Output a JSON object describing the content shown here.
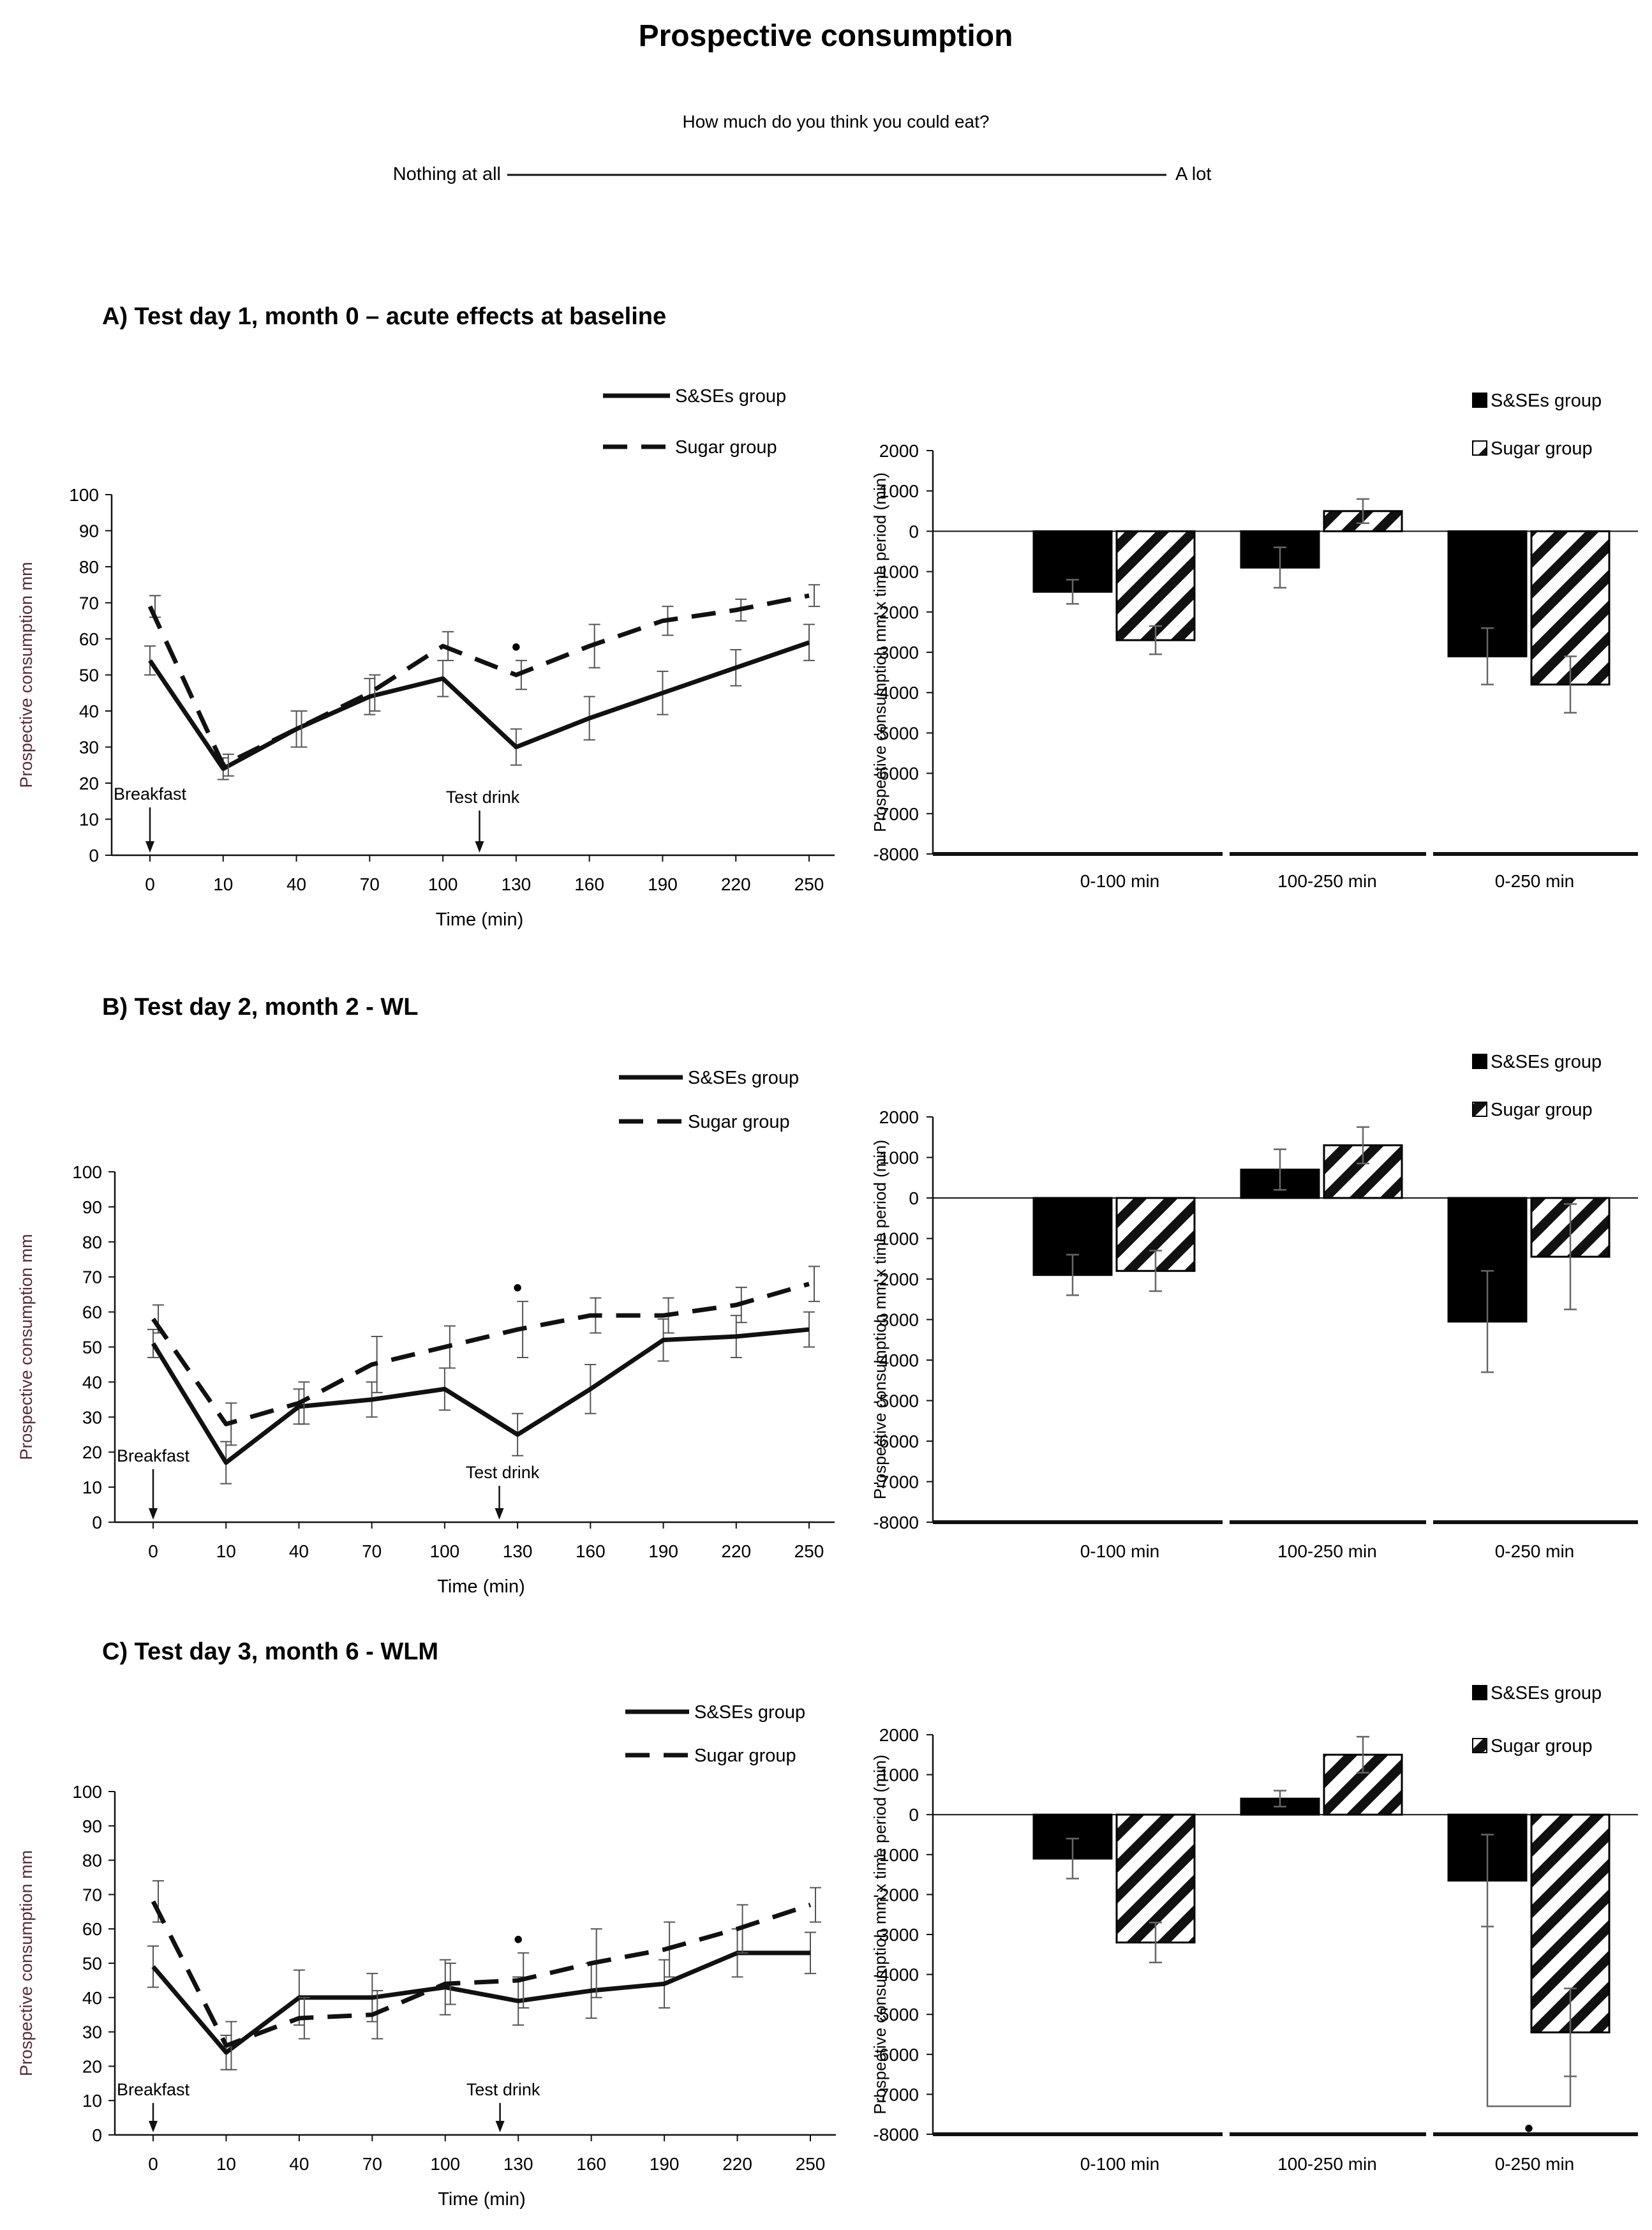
{
  "header": {
    "title": "Prospective consumption",
    "question": "How much do you think you could eat?",
    "scale_left": "Nothing at all",
    "scale_right": "A lot"
  },
  "chart_data": [
    {
      "type": "line",
      "panel": "A",
      "section_title": "A) Test day 1, month 0 – acute effects at baseline",
      "title": "",
      "xlabel": "Time (min)",
      "ylabel": "Prospective consumption mm",
      "x": [
        0,
        10,
        40,
        70,
        100,
        130,
        160,
        190,
        220,
        250
      ],
      "ylim": [
        0,
        100
      ],
      "yticks": [
        0,
        10,
        20,
        30,
        40,
        50,
        60,
        70,
        80,
        90,
        100
      ],
      "series": [
        {
          "name": "S&SEs group",
          "style": "solid",
          "values": [
            54,
            24,
            35,
            44,
            49,
            30,
            38,
            45,
            52,
            59
          ],
          "err": [
            4,
            3,
            5,
            5,
            5,
            5,
            6,
            6,
            5,
            5
          ]
        },
        {
          "name": "Sugar group",
          "style": "dashed",
          "values": [
            69,
            25,
            35,
            45,
            58,
            50,
            58,
            65,
            68,
            72
          ],
          "err": [
            3,
            3,
            5,
            5,
            4,
            4,
            6,
            4,
            3,
            3
          ]
        }
      ],
      "annotations": [
        {
          "text": "Breakfast",
          "x_index": 0
        },
        {
          "text": "Test drink",
          "x_index": 4.5
        }
      ],
      "significance": [
        {
          "text": "•",
          "x_index": 5
        }
      ]
    },
    {
      "type": "bar",
      "panel": "A",
      "title": "",
      "xlabel": "",
      "ylabel": "Prospective consumption mm x time period (min)",
      "categories": [
        "0-100 min",
        "100-250 min",
        "0-250 min"
      ],
      "ylim": [
        -8000,
        2000
      ],
      "yticks": [
        2000,
        1000,
        0,
        -1000,
        -2000,
        -3000,
        -4000,
        -5000,
        -6000,
        -7000,
        -8000
      ],
      "series": [
        {
          "name": "S&SEs group",
          "fill": "solid",
          "values": [
            -1500,
            -900,
            -3100
          ],
          "err": [
            300,
            500,
            700
          ]
        },
        {
          "name": "Sugar group",
          "fill": "hatched",
          "values": [
            -2700,
            500,
            -3800
          ],
          "err": [
            350,
            300,
            700
          ]
        }
      ]
    },
    {
      "type": "line",
      "panel": "B",
      "section_title": "B) Test day 2, month 2 - WL",
      "title": "",
      "xlabel": "Time (min)",
      "ylabel": "Prospective consumption mm",
      "x": [
        0,
        10,
        40,
        70,
        100,
        130,
        160,
        190,
        220,
        250
      ],
      "ylim": [
        0,
        100
      ],
      "yticks": [
        0,
        10,
        20,
        30,
        40,
        50,
        60,
        70,
        80,
        90,
        100
      ],
      "series": [
        {
          "name": "S&SEs group",
          "style": "solid",
          "values": [
            51,
            17,
            33,
            35,
            38,
            25,
            38,
            52,
            53,
            55
          ],
          "err": [
            4,
            6,
            5,
            5,
            6,
            6,
            7,
            6,
            6,
            5
          ]
        },
        {
          "name": "Sugar group",
          "style": "dashed",
          "values": [
            58,
            28,
            34,
            45,
            50,
            55,
            59,
            59,
            62,
            68
          ],
          "err": [
            4,
            6,
            6,
            8,
            6,
            8,
            5,
            5,
            5,
            5
          ]
        }
      ],
      "annotations": [
        {
          "text": "Breakfast",
          "x_index": 0
        },
        {
          "text": "Test drink",
          "x_index": 4.75
        }
      ],
      "significance": [
        {
          "text": "•",
          "x_index": 5
        }
      ]
    },
    {
      "type": "bar",
      "panel": "B",
      "title": "",
      "xlabel": "",
      "ylabel": "Prospective consumption mm x time period (min)",
      "categories": [
        "0-100 min",
        "100-250 min",
        "0-250 min"
      ],
      "ylim": [
        -8000,
        2000
      ],
      "yticks": [
        2000,
        1000,
        0,
        -1000,
        -2000,
        -3000,
        -4000,
        -5000,
        -6000,
        -7000,
        -8000
      ],
      "series": [
        {
          "name": "S&SEs group",
          "fill": "solid",
          "values": [
            -1900,
            700,
            -3050
          ],
          "err": [
            500,
            500,
            1250
          ]
        },
        {
          "name": "Sugar group",
          "fill": "hatched",
          "values": [
            -1800,
            1300,
            -1450
          ],
          "err": [
            500,
            450,
            1300
          ]
        }
      ]
    },
    {
      "type": "line",
      "panel": "C",
      "section_title": "C) Test day 3, month 6 - WLM",
      "title": "",
      "xlabel": "Time (min)",
      "ylabel": "Prospective consumption mm",
      "x": [
        0,
        10,
        40,
        70,
        100,
        130,
        160,
        190,
        220,
        250
      ],
      "ylim": [
        0,
        100
      ],
      "yticks": [
        0,
        10,
        20,
        30,
        40,
        50,
        60,
        70,
        80,
        90,
        100
      ],
      "series": [
        {
          "name": "S&SEs group",
          "style": "solid",
          "values": [
            49,
            24,
            40,
            40,
            43,
            39,
            42,
            44,
            53,
            53
          ],
          "err": [
            6,
            5,
            8,
            7,
            8,
            7,
            8,
            7,
            7,
            6
          ]
        },
        {
          "name": "Sugar group",
          "style": "dashed",
          "values": [
            68,
            26,
            34,
            35,
            44,
            45,
            50,
            54,
            60,
            67
          ],
          "err": [
            6,
            7,
            6,
            7,
            6,
            8,
            10,
            8,
            7,
            5
          ]
        }
      ],
      "annotations": [
        {
          "text": "Breakfast",
          "x_index": 0
        },
        {
          "text": "Test drink",
          "x_index": 4.75
        }
      ],
      "significance": [
        {
          "text": "•",
          "x_index": 5
        }
      ]
    },
    {
      "type": "bar",
      "panel": "C",
      "title": "",
      "xlabel": "",
      "ylabel": "Prospective consumption mm x time period (min)",
      "categories": [
        "0-100 min",
        "100-250 min",
        "0-250 min"
      ],
      "ylim": [
        -8000,
        2000
      ],
      "yticks": [
        2000,
        1000,
        0,
        -1000,
        -2000,
        -3000,
        -4000,
        -5000,
        -6000,
        -7000,
        -8000
      ],
      "series": [
        {
          "name": "S&SEs group",
          "fill": "solid",
          "values": [
            -1100,
            400,
            -1650
          ],
          "err": [
            500,
            200,
            1150
          ]
        },
        {
          "name": "Sugar group",
          "fill": "hatched",
          "values": [
            -3200,
            1500,
            -5450
          ],
          "err": [
            500,
            450,
            1100
          ]
        }
      ],
      "significance": [
        {
          "text": "•",
          "between": "0-250 min"
        }
      ]
    }
  ]
}
